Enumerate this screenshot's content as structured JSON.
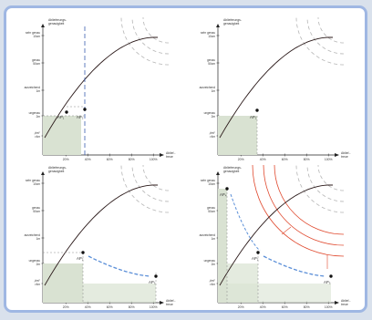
{
  "axes": {
    "y_title_line1": "Ablieferungs-",
    "y_title_line2": "genauigkeit",
    "x_title_line1": "Ablief.-",
    "x_title_line2": "treue",
    "y_levels": [
      {
        "name": "sehr genau",
        "sub": "10cm"
      },
      {
        "name": "genau",
        "sub": "50cm"
      },
      {
        "name": "ausreichend",
        "sub": "1m"
      },
      {
        "name": "ungenau",
        "sub": "2m"
      },
      {
        "name": "„frei“",
        "sub": ">4m"
      }
    ],
    "x_ticks": [
      "20%",
      "40%",
      "60%",
      "80%",
      "100%"
    ]
  },
  "panels": [
    {
      "points": [
        "AP₁",
        "AP₂"
      ]
    },
    {
      "points": [
        "AP₂"
      ]
    },
    {
      "points": [
        "AP₂",
        "AP₃"
      ]
    },
    {
      "points": [
        "AP₄",
        "AP₂",
        "AP₃"
      ]
    }
  ],
  "colors": {
    "curve": "#2b1a1a",
    "guide": "#3b5fb0",
    "arrow": "#5b8fd8",
    "red": "#e0492e",
    "shade": "#d9e2d2",
    "grey_arc": "#b5b5b5"
  }
}
